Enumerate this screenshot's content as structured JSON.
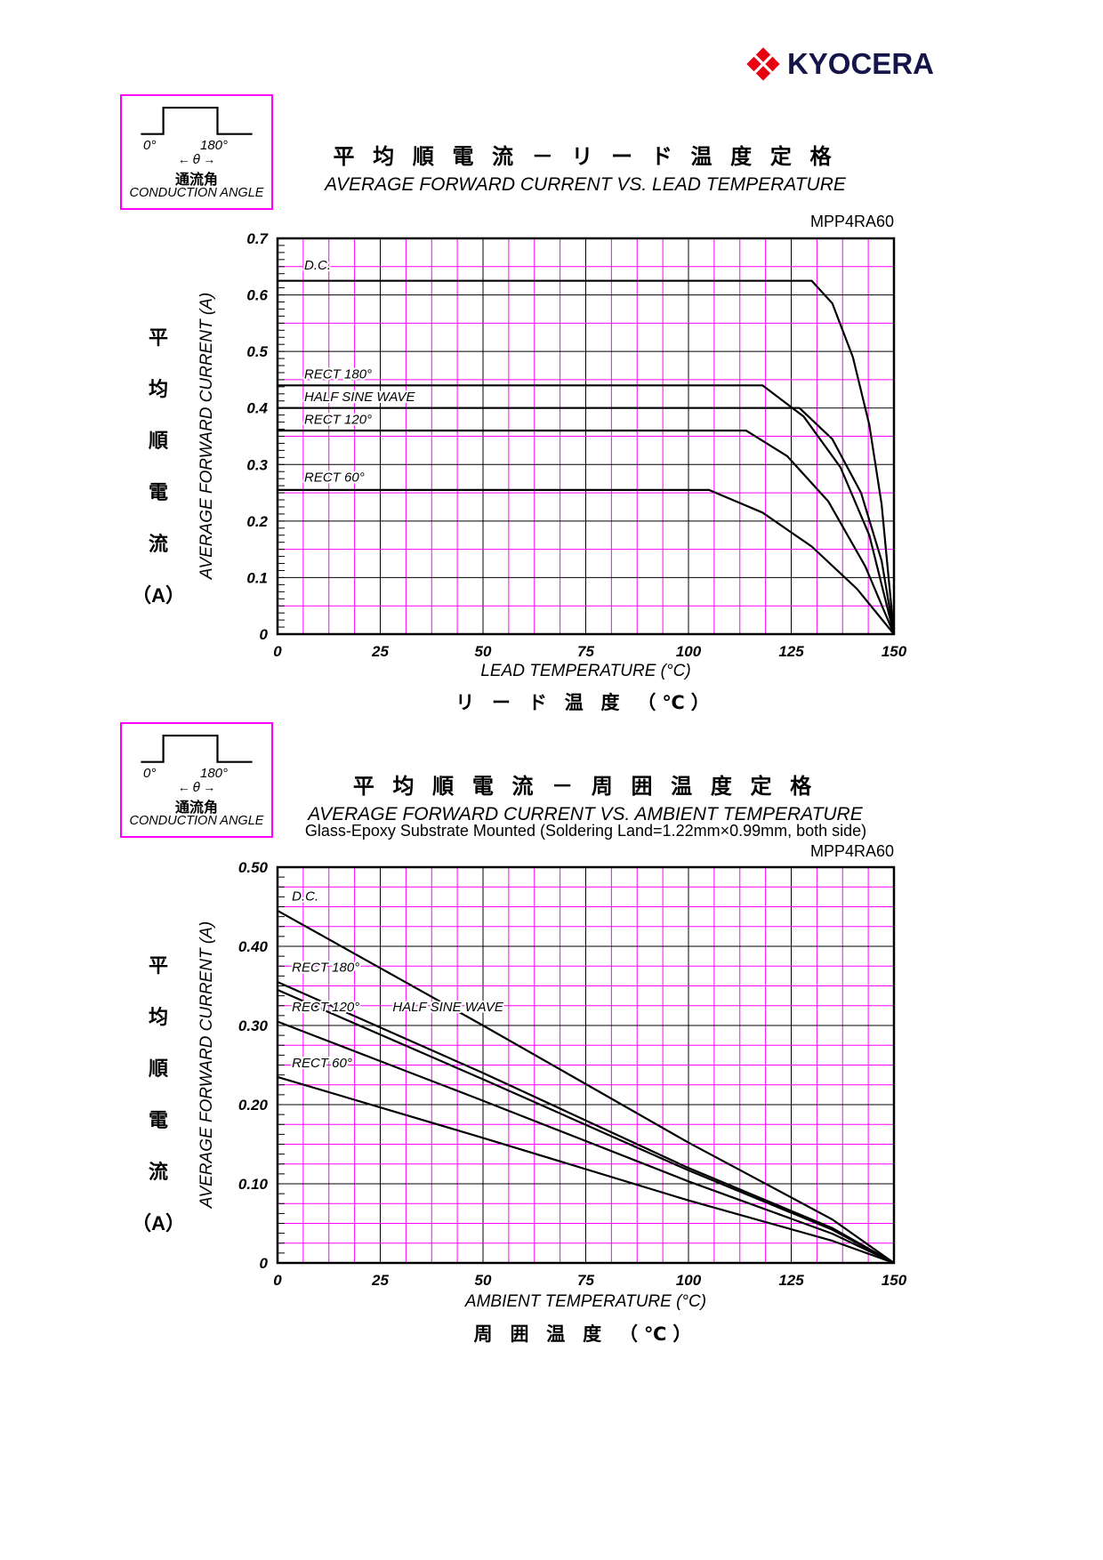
{
  "logo": {
    "brand": "KYOCERA",
    "mark_color": "#e60012",
    "text_color": "#15154a"
  },
  "conduction_angle": {
    "label_0": "0°",
    "label_180": "180°",
    "arrow_left": "←",
    "theta": "θ",
    "arrow_right": "→",
    "label_jp": "通流角",
    "label_en": "CONDUCTION ANGLE"
  },
  "section1": {
    "title_jp": "平 均 順 電 流 － リ ー ド 温 度 定 格",
    "title_en": "AVERAGE FORWARD CURRENT VS. LEAD TEMPERATURE",
    "part_number": "MPP4RA60",
    "xlabel_en": "LEAD TEMPERATURE (°C)",
    "xlabel_jp": "リ ー ド 温 度 （℃）",
    "ylabel_en": "AVERAGE FORWARD CURRENT (A)",
    "ylabel_jp_chars": [
      "平",
      "均",
      "順",
      "電",
      "流",
      "（A）"
    ]
  },
  "section2": {
    "title_jp": "平 均 順 電 流 － 周 囲 温 度 定 格",
    "title_en": "AVERAGE FORWARD CURRENT VS. AMBIENT TEMPERATURE",
    "subtitle": "Glass-Epoxy Substrate Mounted (Soldering Land=1.22mm×0.99mm, both side)",
    "part_number": "MPP4RA60",
    "xlabel_en": "AMBIENT TEMPERATURE (°C)",
    "xlabel_jp": "周 囲 温 度 （℃）",
    "ylabel_en": "AVERAGE FORWARD CURRENT (A)",
    "ylabel_jp_chars": [
      "平",
      "均",
      "順",
      "電",
      "流",
      "（A）"
    ]
  },
  "chart_data": [
    {
      "type": "line",
      "title": "AVERAGE FORWARD CURRENT VS. LEAD TEMPERATURE",
      "part": "MPP4RA60",
      "xlabel": "LEAD TEMPERATURE (°C)",
      "ylabel": "AVERAGE FORWARD CURRENT (A)",
      "xlim": [
        0,
        150
      ],
      "ylim": [
        0,
        0.7
      ],
      "xtick_values": [
        0,
        25,
        50,
        75,
        100,
        125,
        150
      ],
      "xtick_labels": [
        "0",
        "25",
        "50",
        "75",
        "100",
        "125",
        "150"
      ],
      "ytick_values": [
        0,
        0.1,
        0.2,
        0.3,
        0.4,
        0.5,
        0.6,
        0.7
      ],
      "ytick_labels": [
        "0",
        "0.1",
        "0.2",
        "0.3",
        "0.4",
        "0.5",
        "0.6",
        "0.7"
      ],
      "grid": {
        "x_minor": 6.25,
        "x_major": 25,
        "y_minor": 0.05,
        "y_major": 0.1,
        "y_tick": 0.0125,
        "minor_color": "#ff00ff",
        "major_color": "#000000"
      },
      "series": [
        {
          "name": "D.C.",
          "label_pos": [
            6.5,
            0.645
          ],
          "points": [
            [
              0,
              0.625
            ],
            [
              130,
              0.625
            ],
            [
              135,
              0.585
            ],
            [
              140,
              0.49
            ],
            [
              144,
              0.37
            ],
            [
              147,
              0.23
            ],
            [
              150,
              0
            ]
          ]
        },
        {
          "name": "RECT 180°",
          "label_pos": [
            6.5,
            0.452
          ],
          "points": [
            [
              0,
              0.44
            ],
            [
              118,
              0.44
            ],
            [
              128,
              0.385
            ],
            [
              137,
              0.295
            ],
            [
              144,
              0.175
            ],
            [
              150,
              0
            ]
          ]
        },
        {
          "name": "HALF SINE WAVE",
          "label_pos": [
            6.5,
            0.412
          ],
          "points": [
            [
              0,
              0.4
            ],
            [
              127,
              0.4
            ],
            [
              135,
              0.345
            ],
            [
              142,
              0.25
            ],
            [
              147,
              0.13
            ],
            [
              150,
              0
            ]
          ]
        },
        {
          "name": "RECT 120°",
          "label_pos": [
            6.5,
            0.372
          ],
          "points": [
            [
              0,
              0.36
            ],
            [
              114,
              0.36
            ],
            [
              124,
              0.315
            ],
            [
              134,
              0.235
            ],
            [
              143,
              0.12
            ],
            [
              150,
              0
            ]
          ]
        },
        {
          "name": "RECT 60°",
          "label_pos": [
            6.5,
            0.27
          ],
          "points": [
            [
              0,
              0.255
            ],
            [
              105,
              0.255
            ],
            [
              118,
              0.215
            ],
            [
              130,
              0.155
            ],
            [
              141,
              0.08
            ],
            [
              150,
              0
            ]
          ]
        }
      ]
    },
    {
      "type": "line",
      "title": "AVERAGE FORWARD CURRENT VS. AMBIENT TEMPERATURE",
      "part": "MPP4RA60",
      "xlabel": "AMBIENT TEMPERATURE (°C)",
      "ylabel": "AVERAGE FORWARD CURRENT (A)",
      "xlim": [
        0,
        150
      ],
      "ylim": [
        0,
        0.5
      ],
      "xtick_values": [
        0,
        25,
        50,
        75,
        100,
        125,
        150
      ],
      "xtick_labels": [
        "0",
        "25",
        "50",
        "75",
        "100",
        "125",
        "150"
      ],
      "ytick_values": [
        0,
        0.1,
        0.2,
        0.3,
        0.4,
        0.5
      ],
      "ytick_labels": [
        "0",
        "0.10",
        "0.20",
        "0.30",
        "0.40",
        "0.50"
      ],
      "grid": {
        "x_minor": 6.25,
        "x_major": 25,
        "y_minor": 0.025,
        "y_major": 0.1,
        "y_tick": 0.0125,
        "minor_color": "#ff00ff",
        "major_color": "#000000"
      },
      "series": [
        {
          "name": "D.C.",
          "label_pos": [
            3.5,
            0.458
          ],
          "points": [
            [
              0,
              0.445
            ],
            [
              50,
              0.3
            ],
            [
              100,
              0.152
            ],
            [
              135,
              0.055
            ],
            [
              150,
              0
            ]
          ]
        },
        {
          "name": "RECT 180°",
          "label_pos": [
            3.5,
            0.368
          ],
          "points": [
            [
              0,
              0.355
            ],
            [
              50,
              0.24
            ],
            [
              100,
              0.12
            ],
            [
              135,
              0.044
            ],
            [
              150,
              0
            ]
          ]
        },
        {
          "name": "HALF SINE WAVE",
          "label_pos": [
            28,
            0.318
          ],
          "points": [
            [
              0,
              0.345
            ],
            [
              50,
              0.232
            ],
            [
              100,
              0.117
            ],
            [
              135,
              0.042
            ],
            [
              150,
              0
            ]
          ]
        },
        {
          "name": "RECT 120°",
          "label_pos": [
            3.5,
            0.318
          ],
          "points": [
            [
              0,
              0.305
            ],
            [
              50,
              0.205
            ],
            [
              100,
              0.103
            ],
            [
              135,
              0.037
            ],
            [
              150,
              0
            ]
          ]
        },
        {
          "name": "RECT 60°",
          "label_pos": [
            3.5,
            0.247
          ],
          "points": [
            [
              0,
              0.235
            ],
            [
              50,
              0.158
            ],
            [
              100,
              0.079
            ],
            [
              135,
              0.028
            ],
            [
              150,
              0
            ]
          ]
        }
      ]
    }
  ]
}
